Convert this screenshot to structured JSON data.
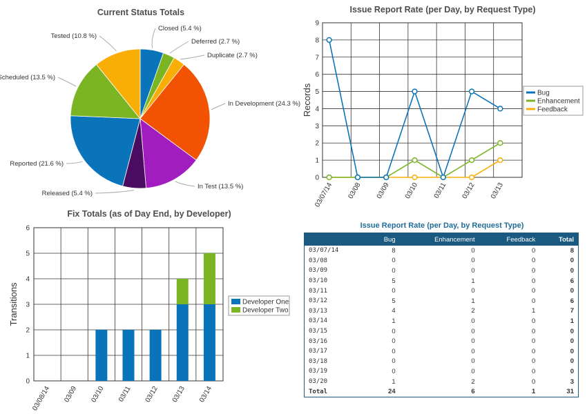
{
  "chart_data": [
    {
      "type": "pie",
      "title": "Current Status Totals",
      "slices": [
        {
          "label": "Closed (5.4 %)",
          "value": 5.4,
          "color": "#0a74bb"
        },
        {
          "label": "Deferred (2.7 %)",
          "value": 2.7,
          "color": "#7bb524"
        },
        {
          "label": "Duplicate (2.7 %)",
          "value": 2.7,
          "color": "#f9ae05"
        },
        {
          "label": "In Development (24.3 %)",
          "value": 24.3,
          "color": "#f25303"
        },
        {
          "label": "In Test (13.5 %)",
          "value": 13.5,
          "color": "#a21dbf"
        },
        {
          "label": "Released (5.4 %)",
          "value": 5.4,
          "color": "#4a0b60"
        },
        {
          "label": "Reported (21.6 %)",
          "value": 21.6,
          "color": "#0a74bb"
        },
        {
          "label": "Scheduled (13.5 %)",
          "value": 13.5,
          "color": "#7bb524"
        },
        {
          "label": "Tested (10.8 %)",
          "value": 10.8,
          "color": "#f9ae05"
        }
      ]
    },
    {
      "type": "line",
      "title": "Issue Report Rate (per Day, by Request Type)",
      "ylabel": "Records",
      "ylim": [
        0,
        9
      ],
      "categories": [
        "03/07/14",
        "03/08",
        "03/09",
        "03/10",
        "03/11",
        "03/12",
        "03/13"
      ],
      "series": [
        {
          "name": "Bug",
          "color": "#0a74bb",
          "values": [
            8,
            0,
            0,
            5,
            0,
            5,
            4
          ]
        },
        {
          "name": "Enhancement",
          "color": "#7bb524",
          "values": [
            0,
            0,
            0,
            1,
            0,
            1,
            2
          ]
        },
        {
          "name": "Feedback",
          "color": "#f9ae05",
          "values": [
            0,
            0,
            0,
            0,
            0,
            0,
            1
          ]
        }
      ],
      "legend": "right"
    },
    {
      "type": "bar",
      "stacked": true,
      "title": "Fix Totals (as of Day End, by Developer)",
      "ylabel": "Transitions",
      "ylim": [
        0,
        6
      ],
      "categories": [
        "03/08/14",
        "03/09",
        "03/10",
        "03/11",
        "03/12",
        "03/13",
        "03/14"
      ],
      "series": [
        {
          "name": "Developer One",
          "color": "#0a74bb",
          "values": [
            0,
            0,
            2,
            2,
            2,
            3,
            3
          ]
        },
        {
          "name": "Developer Two",
          "color": "#7bb524",
          "values": [
            0,
            0,
            0,
            0,
            0,
            1,
            2
          ]
        }
      ],
      "legend": "right"
    },
    {
      "type": "table",
      "title": "Issue Report Rate (per Day, by Request Type)",
      "columns": [
        "",
        "Bug",
        "Enhancement",
        "Feedback",
        "Total"
      ],
      "rows": [
        [
          "03/07/14",
          "8",
          "0",
          "0",
          "8"
        ],
        [
          "03/08",
          "0",
          "0",
          "0",
          "0"
        ],
        [
          "03/09",
          "0",
          "0",
          "0",
          "0"
        ],
        [
          "03/10",
          "5",
          "1",
          "0",
          "6"
        ],
        [
          "03/11",
          "0",
          "0",
          "0",
          "0"
        ],
        [
          "03/12",
          "5",
          "1",
          "0",
          "6"
        ],
        [
          "03/13",
          "4",
          "2",
          "1",
          "7"
        ],
        [
          "03/14",
          "1",
          "0",
          "0",
          "1"
        ],
        [
          "03/15",
          "0",
          "0",
          "0",
          "0"
        ],
        [
          "03/16",
          "0",
          "0",
          "0",
          "0"
        ],
        [
          "03/17",
          "0",
          "0",
          "0",
          "0"
        ],
        [
          "03/18",
          "0",
          "0",
          "0",
          "0"
        ],
        [
          "03/19",
          "0",
          "0",
          "0",
          "0"
        ],
        [
          "03/20",
          "1",
          "2",
          "0",
          "3"
        ]
      ],
      "total_row": [
        "Total",
        "24",
        "6",
        "1",
        "31"
      ]
    }
  ]
}
